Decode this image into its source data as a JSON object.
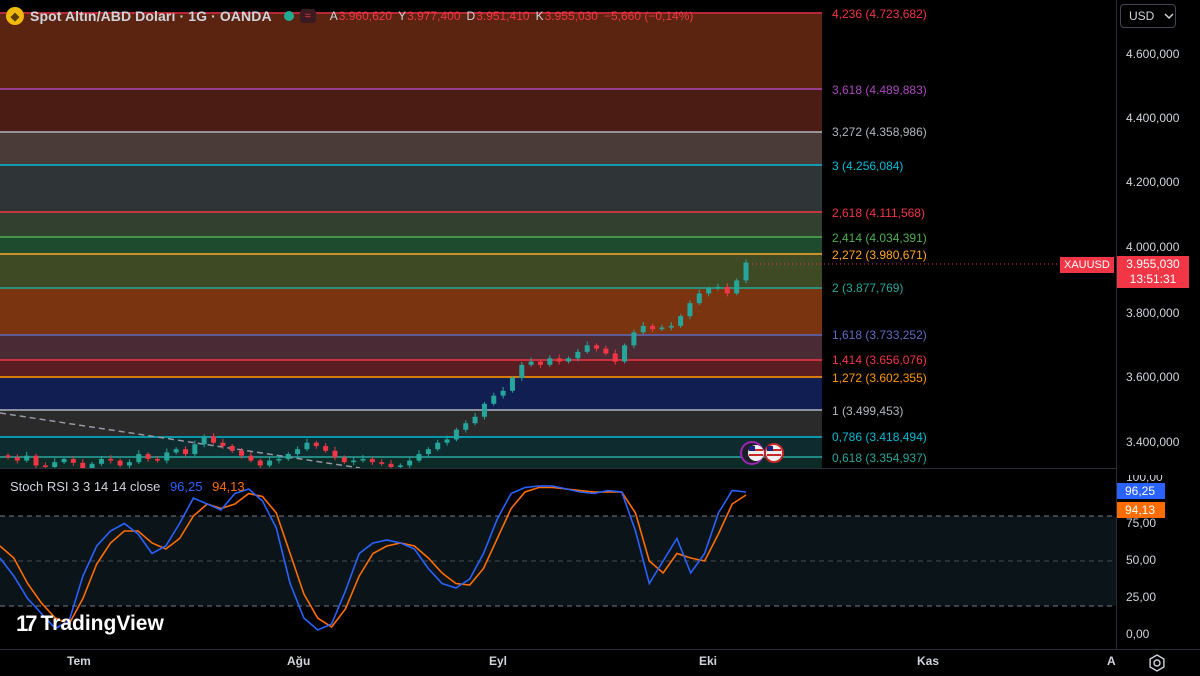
{
  "header": {
    "symbol_title": "Spot Altın/ABD Doları · 1G · OANDA",
    "status_label": "≈",
    "ohlc": [
      {
        "key": "A",
        "value": "3.960,620"
      },
      {
        "key": "Y",
        "value": "3.977,400"
      },
      {
        "key": "D",
        "value": "3.951,410"
      },
      {
        "key": "K",
        "value": "3.955,030"
      }
    ],
    "change": "−5,660 (−0,14%)"
  },
  "currency_button": {
    "label": "USD",
    "icon": "chevron-down-icon"
  },
  "price_axis": {
    "labels": [
      "4.600,000",
      "4.400,000",
      "4.200,000",
      "4.000,000",
      "3.800,000",
      "3.600,000",
      "3.400,000"
    ]
  },
  "fib_levels": [
    {
      "ratio": "4,236",
      "price": "4.723,682",
      "color": "#f23645"
    },
    {
      "ratio": "3,618",
      "price": "4.489,883",
      "color": "#ab47bc"
    },
    {
      "ratio": "3,272",
      "price": "4.358,986",
      "color": "#b2b5be"
    },
    {
      "ratio": "3",
      "price": "4.256,084",
      "color": "#00bcd4"
    },
    {
      "ratio": "2,618",
      "price": "4.111,568",
      "color": "#f23645"
    },
    {
      "ratio": "2,414",
      "price": "4.034,391",
      "color": "#4caf50"
    },
    {
      "ratio": "2,272",
      "price": "3.980,671",
      "color": "#ffa726"
    },
    {
      "ratio": "2",
      "price": "3.877,769",
      "color": "#26a69a"
    },
    {
      "ratio": "1,618",
      "price": "3.733,252",
      "color": "#5c6bc0"
    },
    {
      "ratio": "1,414",
      "price": "3.656,076",
      "color": "#f23645"
    },
    {
      "ratio": "1,272",
      "price": "3.602,355",
      "color": "#ff9800"
    },
    {
      "ratio": "1",
      "price": "3.499,453",
      "color": "#b2b5be"
    },
    {
      "ratio": "0,786",
      "price": "3.418,494",
      "color": "#00bcd4"
    },
    {
      "ratio": "0,618",
      "price": "3.354,937",
      "color": "#26a69a"
    }
  ],
  "last_price": {
    "symbol": "XAUUSD",
    "price": "3.955,030",
    "countdown": "13:51:31",
    "color": "#f23645"
  },
  "stoch": {
    "title": "Stoch RSI 3 3 14 14 close",
    "k_value": "96,25",
    "d_value": "94,13",
    "k_color": "#2962ff",
    "d_color": "#ff6d00",
    "axis_labels": [
      "100,00",
      "75,00",
      "50,00",
      "25,00",
      "0,00"
    ]
  },
  "time_axis": {
    "labels": [
      "Tem",
      "Ağu",
      "Eyl",
      "Eki",
      "Kas",
      "A"
    ]
  },
  "branding": {
    "name": "TradingView",
    "mark": "17"
  },
  "chart_data": {
    "type": "candlestick",
    "title": "Spot Altın/ABD Doları · 1G · OANDA",
    "y_range": [
      3300,
      4750
    ],
    "last_close": 3955.03,
    "closes": [
      3355,
      3345,
      3360,
      3330,
      3325,
      3340,
      3350,
      3338,
      3320,
      3335,
      3350,
      3345,
      3330,
      3340,
      3365,
      3350,
      3345,
      3370,
      3380,
      3365,
      3395,
      3420,
      3400,
      3390,
      3375,
      3360,
      3345,
      3330,
      3345,
      3350,
      3365,
      3380,
      3400,
      3390,
      3375,
      3355,
      3340,
      3345,
      3350,
      3340,
      3335,
      3325,
      3330,
      3345,
      3365,
      3380,
      3400,
      3410,
      3440,
      3460,
      3480,
      3520,
      3545,
      3560,
      3600,
      3640,
      3650,
      3640,
      3660,
      3650,
      3660,
      3680,
      3700,
      3690,
      3675,
      3650,
      3700,
      3740,
      3760,
      3750,
      3755,
      3760,
      3790,
      3830,
      3860,
      3875,
      3880,
      3860,
      3900,
      3955
    ],
    "stoch_k": [
      52,
      40,
      25,
      15,
      5,
      10,
      40,
      60,
      70,
      75,
      68,
      55,
      60,
      75,
      92,
      88,
      84,
      95,
      98,
      90,
      72,
      35,
      12,
      4,
      8,
      30,
      55,
      62,
      64,
      62,
      58,
      45,
      35,
      32,
      38,
      55,
      78,
      95,
      99,
      100,
      100,
      98,
      96,
      95,
      97,
      96,
      70,
      35,
      50,
      65,
      42,
      55,
      82,
      97,
      96
    ],
    "stoch_d": [
      60,
      52,
      35,
      22,
      12,
      8,
      25,
      48,
      62,
      70,
      70,
      62,
      58,
      65,
      80,
      88,
      85,
      88,
      95,
      93,
      82,
      55,
      28,
      12,
      6,
      18,
      40,
      55,
      60,
      62,
      60,
      52,
      42,
      35,
      34,
      45,
      65,
      85,
      96,
      99,
      99,
      98,
      97,
      96,
      96,
      96,
      82,
      50,
      42,
      55,
      52,
      50,
      68,
      88,
      94
    ]
  }
}
